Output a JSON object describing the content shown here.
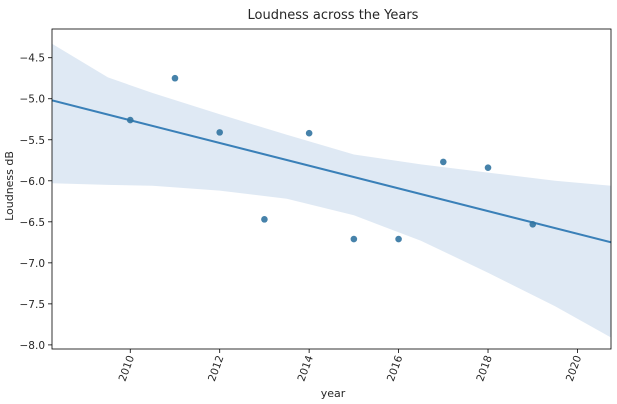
{
  "chart_data": {
    "type": "scatter",
    "title": "Loudness across the Years",
    "xlabel": "year",
    "ylabel": "Loudness dB",
    "xlim": [
      2008.25,
      2020.75
    ],
    "ylim": [
      -8.05,
      -4.15
    ],
    "xticks": [
      2010,
      2012,
      2014,
      2016,
      2018,
      2020
    ],
    "yticks": [
      -8.0,
      -7.5,
      -7.0,
      -6.5,
      -6.0,
      -5.5,
      -5.0,
      -4.5
    ],
    "xtick_labels": [
      "2010",
      "2012",
      "2014",
      "2016",
      "2018",
      "2020"
    ],
    "ytick_labels": [
      "−8.0",
      "−7.5",
      "−7.0",
      "−6.5",
      "−6.0",
      "−5.5",
      "−5.0",
      "−4.5"
    ],
    "xtick_rotation_deg": 70,
    "grid": false,
    "legend": "none",
    "points": [
      {
        "x": 2010,
        "y": -5.26
      },
      {
        "x": 2011,
        "y": -4.75
      },
      {
        "x": 2012,
        "y": -5.41
      },
      {
        "x": 2013,
        "y": -6.47
      },
      {
        "x": 2014,
        "y": -5.42
      },
      {
        "x": 2015,
        "y": -6.71
      },
      {
        "x": 2016,
        "y": -6.71
      },
      {
        "x": 2017,
        "y": -5.77
      },
      {
        "x": 2018,
        "y": -5.84
      },
      {
        "x": 2019,
        "y": -6.53
      }
    ],
    "regression_line": {
      "x": [
        2008.25,
        2020.75
      ],
      "y": [
        -5.02,
        -6.75
      ]
    },
    "confidence_band": {
      "x": [
        2008.25,
        2009.5,
        2010.5,
        2012,
        2013.5,
        2015,
        2016.5,
        2018,
        2019.5,
        2020.75
      ],
      "upper": [
        -4.33,
        -4.74,
        -4.93,
        -5.19,
        -5.44,
        -5.68,
        -5.8,
        -5.9,
        -6.0,
        -6.06
      ],
      "lower": [
        -6.03,
        -6.05,
        -6.06,
        -6.12,
        -6.22,
        -6.42,
        -6.73,
        -7.12,
        -7.53,
        -7.91
      ]
    },
    "colors": {
      "point": "#3274a1",
      "line": "#3a80b8",
      "band": "#bfd4ea",
      "axis": "#000000",
      "text": "#262626"
    }
  }
}
